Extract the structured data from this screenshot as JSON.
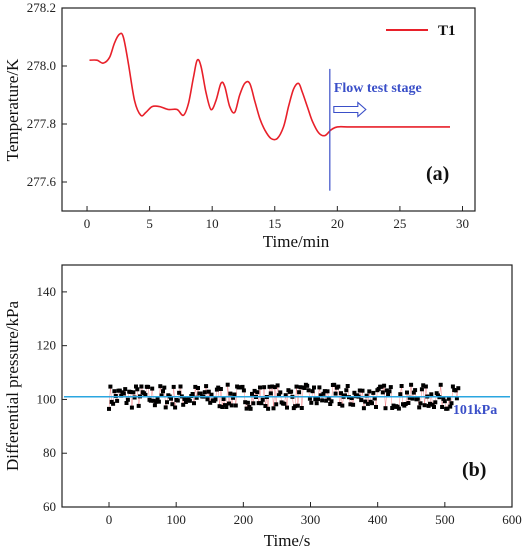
{
  "colors": {
    "t1_line": "#e8202a",
    "annotation": "#3a4fc8",
    "ref_line": "#2aa6e0",
    "scatter": "#000000",
    "scatter_secondary": "#e8202a"
  },
  "chart_data": [
    {
      "type": "line",
      "panel_label": "(a)",
      "xlabel": "Time/min",
      "ylabel": "Temperature/K",
      "xlim": [
        -2,
        31
      ],
      "ylim": [
        277.5,
        278.2
      ],
      "xticks": [
        0,
        5,
        10,
        15,
        20,
        25,
        30
      ],
      "yticks": [
        277.6,
        277.8,
        278.0,
        278.2
      ],
      "ytick_labels": [
        "277.6",
        "277.8",
        "278.0",
        "278.2"
      ],
      "legend": {
        "position": "top-right",
        "entries": [
          "T1"
        ]
      },
      "annotation": {
        "text": "Flow test stage",
        "x": 19.4
      },
      "series": [
        {
          "name": "T1",
          "x": [
            0.2,
            0.8,
            1.3,
            1.8,
            2.2,
            2.6,
            2.9,
            3.3,
            3.8,
            4.3,
            4.7,
            5.2,
            5.8,
            6.5,
            7.2,
            7.7,
            8.1,
            8.5,
            8.8,
            9.1,
            9.5,
            9.9,
            10.3,
            10.7,
            11.0,
            11.4,
            11.8,
            12.2,
            12.6,
            13.0,
            13.4,
            13.8,
            14.2,
            14.7,
            15.2,
            15.7,
            16.1,
            16.5,
            16.9,
            17.2,
            17.6,
            18.0,
            18.5,
            19.0,
            19.5,
            20.0,
            21.0,
            23.0,
            25.0,
            27.0,
            29.0
          ],
          "y": [
            278.02,
            278.02,
            278.01,
            278.03,
            278.08,
            278.11,
            278.1,
            278.01,
            277.88,
            277.83,
            277.84,
            277.86,
            277.86,
            277.85,
            277.85,
            277.83,
            277.87,
            277.96,
            278.02,
            278.0,
            277.91,
            277.85,
            277.88,
            277.94,
            277.93,
            277.86,
            277.84,
            277.9,
            277.94,
            277.94,
            277.88,
            277.82,
            277.78,
            277.75,
            277.75,
            277.79,
            277.86,
            277.92,
            277.94,
            277.91,
            277.86,
            277.81,
            277.77,
            277.76,
            277.78,
            277.79,
            277.79,
            277.79,
            277.79,
            277.79,
            277.79
          ]
        }
      ]
    },
    {
      "type": "scatter",
      "panel_label": "(b)",
      "xlabel": "Time/s",
      "ylabel": "Differential pressure/kPa",
      "xlim": [
        -70,
        600
      ],
      "ylim": [
        60,
        150
      ],
      "xticks": [
        0,
        100,
        200,
        300,
        400,
        500,
        600
      ],
      "yticks": [
        60,
        80,
        100,
        120,
        140
      ],
      "reference_line": {
        "value": 101,
        "label": "101kPa"
      },
      "scatter_points": {
        "x_start": 0,
        "x_end": 520,
        "count": 260,
        "center": 101,
        "amplitude": 4.5
      }
    }
  ]
}
